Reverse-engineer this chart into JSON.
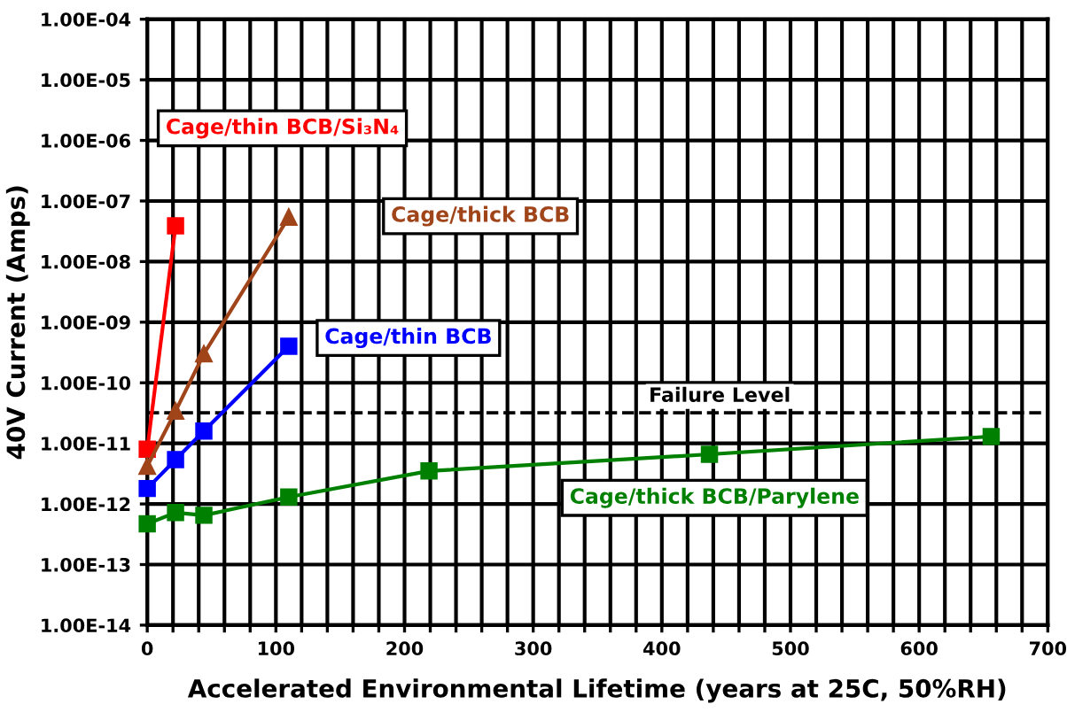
{
  "chart_data": {
    "type": "line",
    "xlabel": "Accelerated Environmental Lifetime (years at 25C, 50%RH)",
    "ylabel": "40V Current (Amps)",
    "log": "y",
    "grid": true,
    "legend": false,
    "line_style": "solid",
    "xlim": [
      0,
      700
    ],
    "xticks": [
      0,
      {
        "value": 20,
        "label": null
      },
      {
        "value": 40,
        "label": null
      },
      {
        "value": 60,
        "label": null
      },
      {
        "value": 80,
        "label": null
      },
      100,
      {
        "value": 120,
        "label": null
      },
      {
        "value": 140,
        "label": null
      },
      {
        "value": 160,
        "label": null
      },
      {
        "value": 180,
        "label": null
      },
      200,
      {
        "value": 220,
        "label": null
      },
      {
        "value": 240,
        "label": null
      },
      {
        "value": 260,
        "label": null
      },
      {
        "value": 280,
        "label": null
      },
      300,
      {
        "value": 320,
        "label": null
      },
      {
        "value": 340,
        "label": null
      },
      {
        "value": 360,
        "label": null
      },
      {
        "value": 380,
        "label": null
      },
      400,
      {
        "value": 420,
        "label": null
      },
      {
        "value": 440,
        "label": null
      },
      {
        "value": 460,
        "label": null
      },
      {
        "value": 480,
        "label": null
      },
      500,
      {
        "value": 520,
        "label": null
      },
      {
        "value": 540,
        "label": null
      },
      {
        "value": 560,
        "label": null
      },
      {
        "value": 580,
        "label": null
      },
      600,
      {
        "value": 620,
        "label": null
      },
      {
        "value": 640,
        "label": null
      },
      {
        "value": 660,
        "label": null
      },
      {
        "value": 680,
        "label": null
      },
      700
    ],
    "ylim": [
      1e-14,
      0.0001
    ],
    "yticks": [
      {
        "value": 1e-14,
        "label": "1.00E-14"
      },
      {
        "value": 1e-13,
        "label": "1.00E-13"
      },
      {
        "value": 1e-12,
        "label": "1.00E-12"
      },
      {
        "value": 1e-11,
        "label": "1.00E-11"
      },
      {
        "value": 1e-10,
        "label": "1.00E-10"
      },
      {
        "value": 1e-09,
        "label": "1.00E-09"
      },
      {
        "value": 1e-08,
        "label": "1.00E-08"
      },
      {
        "value": 1e-07,
        "label": "1.00E-07"
      },
      {
        "value": 1e-06,
        "label": "1.00E-06"
      },
      {
        "value": 1e-05,
        "label": "1.00E-05"
      },
      {
        "value": 0.0001,
        "label": "1.00E-04"
      }
    ],
    "ref_lines": [
      {
        "axis": "y",
        "value": 3.2e-11,
        "label": "Failure Level",
        "color": "#000000",
        "line_style": "dashed"
      }
    ],
    "series": [
      {
        "name": "Cage/thin BCB/Si₃N₄",
        "color": "#ff0000",
        "marker": "square",
        "x": [
          0,
          22
        ],
        "values": [
          8e-12,
          3.9e-08
        ]
      },
      {
        "name": "Cage/thick BCB",
        "color": "#a0441a",
        "marker": "triangle",
        "x": [
          0,
          22,
          44,
          110
        ],
        "values": [
          4.2e-12,
          3.4e-11,
          3e-10,
          5.4e-08
        ]
      },
      {
        "name": "Cage/thin BCB",
        "color": "#0000ff",
        "marker": "square",
        "x": [
          0,
          22,
          44,
          110
        ],
        "values": [
          1.8e-12,
          5.4e-12,
          1.6e-11,
          4e-10
        ]
      },
      {
        "name": "Cage/thick BCB/Parylene",
        "color": "#008000",
        "marker": "square",
        "x": [
          0,
          22,
          44,
          110,
          219,
          437,
          656
        ],
        "values": [
          4.7e-13,
          7.2e-13,
          6.5e-13,
          1.3e-12,
          3.5e-12,
          6.6e-12,
          1.3e-11
        ]
      }
    ]
  }
}
